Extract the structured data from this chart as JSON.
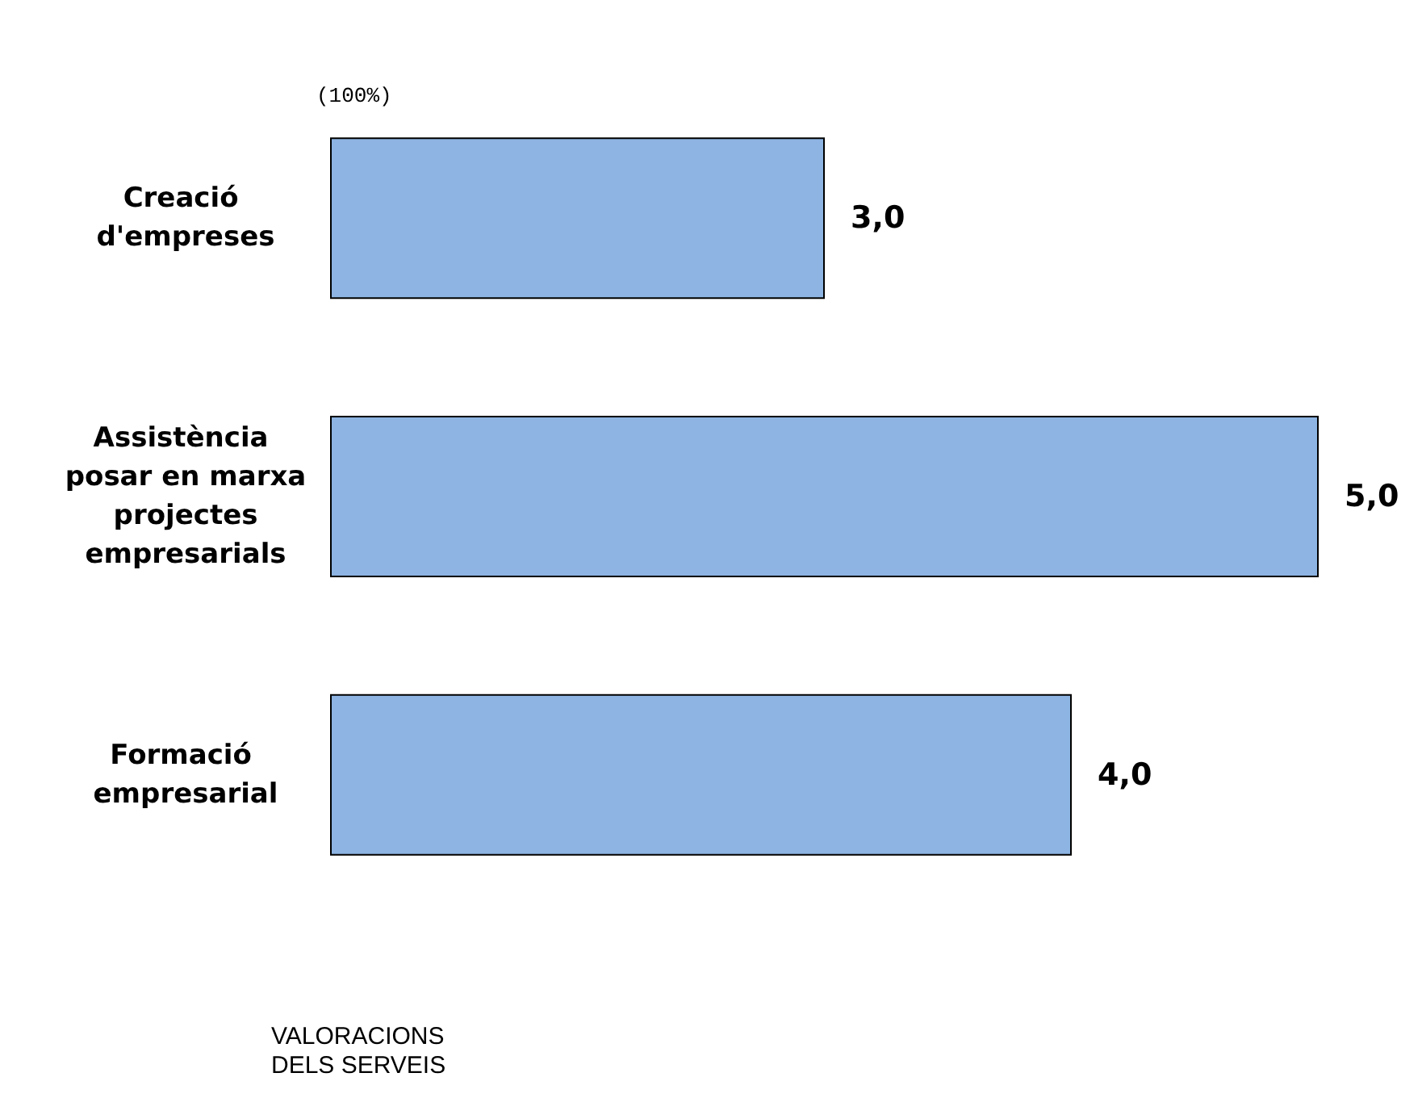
{
  "chart_data": {
    "type": "bar",
    "orientation": "horizontal",
    "title": "(100%)",
    "annotations": [
      "VALORACIONS\nDELS SERVEIS"
    ],
    "categories": [
      "Creació d'empreses",
      "Assistència posar en marxa projectes empresarials",
      "Formació empresarial"
    ],
    "values": [
      3,
      5,
      4
    ],
    "value_labels": [
      "3,0",
      "5,0",
      "4,0"
    ],
    "color": "#8db4e2",
    "xlim": [
      1,
      5
    ]
  }
}
